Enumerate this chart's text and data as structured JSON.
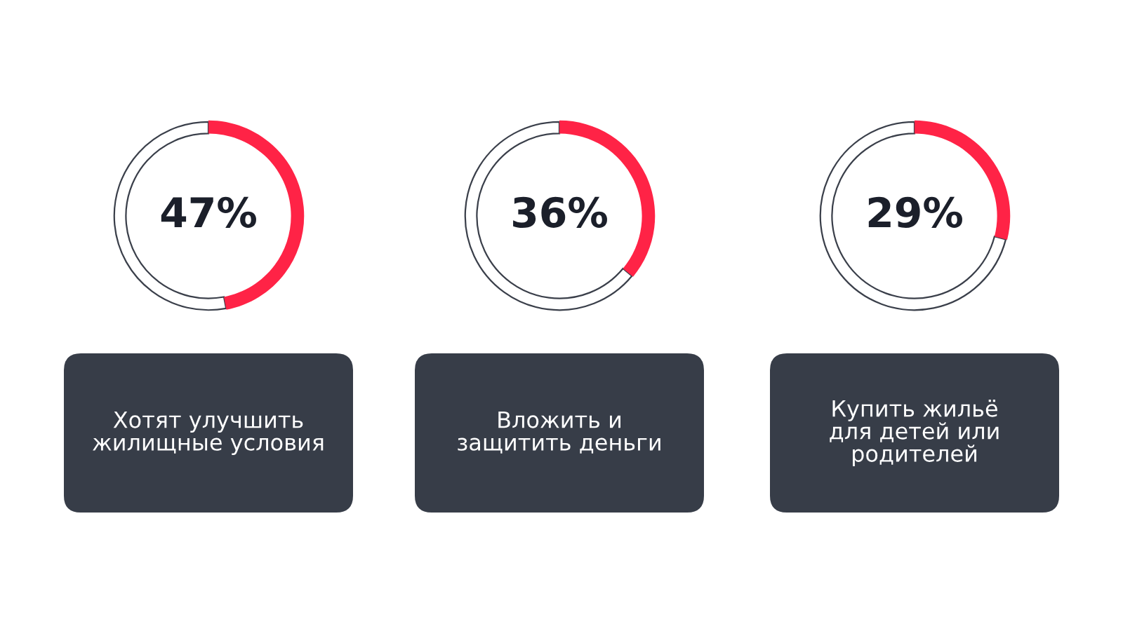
{
  "chart_data": [
    {
      "type": "donut",
      "title": "Хотят улучшить\nжилищные условия",
      "categories": [
        null,
        null
      ],
      "values": [
        47,
        53
      ],
      "colors": [
        "#ff2346",
        "#ffffff"
      ],
      "value_labels": [
        "47%",
        null
      ]
    },
    {
      "type": "donut",
      "title": "Вложить и\nзащитить деньги",
      "categories": [
        null,
        null
      ],
      "values": [
        36,
        64
      ],
      "colors": [
        "#ff2346",
        "#ffffff"
      ],
      "value_labels": [
        "36%",
        null
      ]
    },
    {
      "type": "donut",
      "title": "Купить жильё\nдля детей или\nродителей",
      "categories": [
        null,
        null
      ],
      "values": [
        29,
        71
      ],
      "colors": [
        "#ff2346",
        "#ffffff"
      ],
      "value_labels": [
        "29%",
        null
      ]
    }
  ]
}
